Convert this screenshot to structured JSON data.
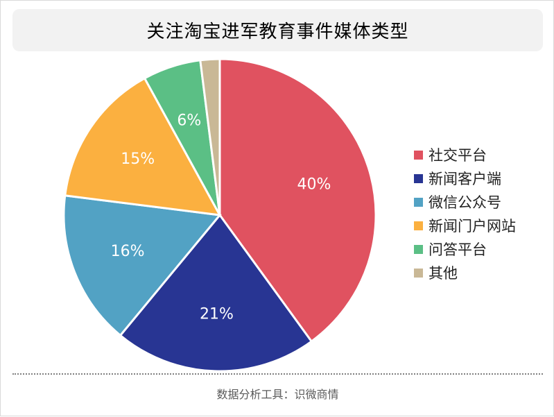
{
  "chart_data": {
    "type": "pie",
    "title": "关注淘宝进军教育事件媒体类型",
    "categories": [
      "社交平台",
      "新闻客户端",
      "微信公众号",
      "新闻门户网站",
      "问答平台",
      "其他"
    ],
    "values": [
      40,
      21,
      16,
      15,
      6,
      2
    ],
    "data_labels": [
      "40%",
      "21%",
      "16%",
      "15%",
      "6%",
      ""
    ],
    "colors": [
      "#e05260",
      "#283593",
      "#52a2c4",
      "#fbb040",
      "#5bbf85",
      "#c9b896"
    ],
    "legend_position": "right",
    "start_angle": "top",
    "direction": "clockwise"
  },
  "footer": {
    "source": "数据分析工具：识微商情"
  }
}
